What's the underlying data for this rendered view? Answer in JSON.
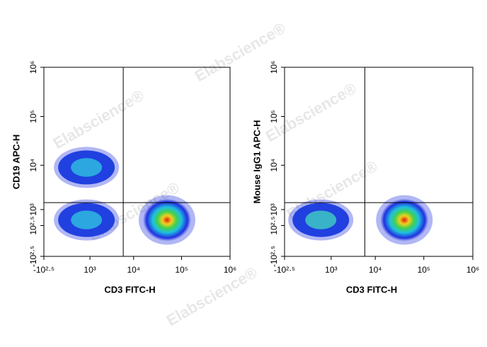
{
  "watermark": "Elabscience®",
  "chart_data": [
    {
      "type": "density",
      "x_label": "CD3 FITC-H",
      "y_label": "CD19 APC-H",
      "xscale": "biexponential",
      "yscale": "biexponential",
      "xlim": [
        -316,
        1000000
      ],
      "ylim": [
        -316,
        1000000
      ],
      "xticks": [
        {
          "value": -316,
          "label": "-10²·⁵"
        },
        {
          "value": 1000,
          "label": "10³"
        },
        {
          "value": 10000,
          "label": "10⁴"
        },
        {
          "value": 100000,
          "label": "10⁵"
        },
        {
          "value": 1000000,
          "label": "10⁶"
        }
      ],
      "yticks": [
        {
          "value": -316,
          "label": "-10²·⁵"
        },
        {
          "value": 316,
          "label": "10²·⁵"
        },
        {
          "value": 1000,
          "label": "10³"
        },
        {
          "value": 10000,
          "label": "10⁴"
        },
        {
          "value": 100000,
          "label": "10⁵"
        },
        {
          "value": 1000000,
          "label": "10⁶"
        }
      ],
      "gate": {
        "x": 6000,
        "y": 1500
      },
      "populations": [
        {
          "x": 800,
          "y": 9000,
          "color": "#30c0e0"
        },
        {
          "x": 800,
          "y": 500,
          "color": "#30c0e0"
        },
        {
          "x": 50000,
          "y": 500,
          "color": "#e02010"
        }
      ]
    },
    {
      "type": "density",
      "x_label": "CD3 FITC-H",
      "y_label": "Mouse IgG1 APC-H",
      "xscale": "biexponential",
      "yscale": "biexponential",
      "xlim": [
        -316,
        1000000
      ],
      "ylim": [
        -316,
        1000000
      ],
      "xticks": [
        {
          "value": -316,
          "label": "-10²·⁵"
        },
        {
          "value": 1000,
          "label": "10³"
        },
        {
          "value": 10000,
          "label": "10⁴"
        },
        {
          "value": 100000,
          "label": "10⁵"
        },
        {
          "value": 1000000,
          "label": "10⁶"
        }
      ],
      "yticks": [
        {
          "value": -316,
          "label": "-10²·⁵"
        },
        {
          "value": 316,
          "label": "10²·⁵"
        },
        {
          "value": 1000,
          "label": "10³"
        },
        {
          "value": 10000,
          "label": "10⁴"
        },
        {
          "value": 100000,
          "label": "10⁵"
        },
        {
          "value": 1000000,
          "label": "10⁶"
        }
      ],
      "gate": {
        "x": 6000,
        "y": 1500
      },
      "populations": [
        {
          "x": 500,
          "y": 500,
          "color": "#40d0c0"
        },
        {
          "x": 40000,
          "y": 500,
          "color": "#e02010"
        }
      ]
    }
  ]
}
